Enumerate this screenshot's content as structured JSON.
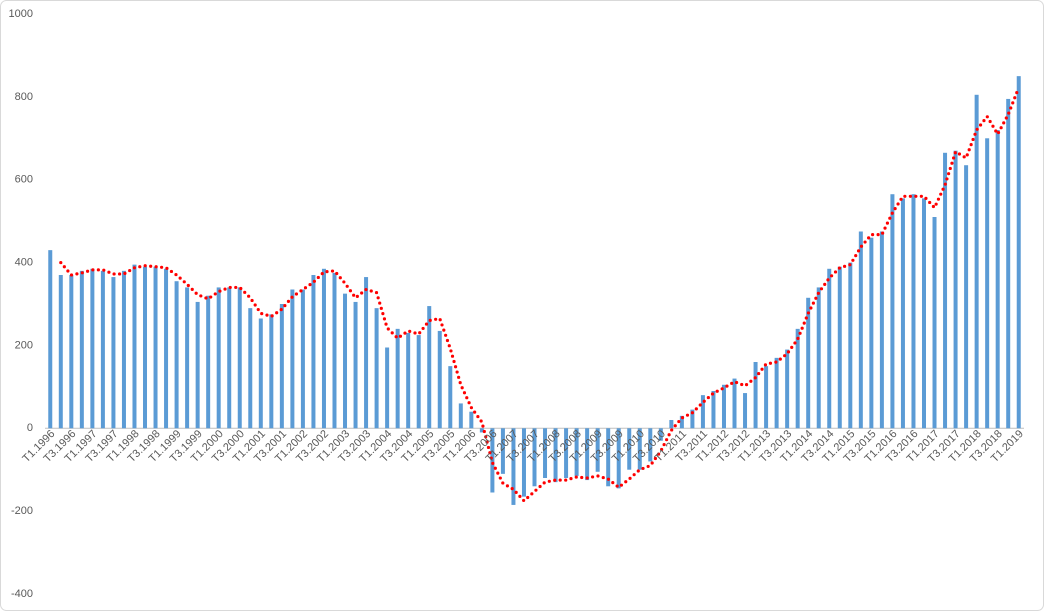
{
  "chart_data": {
    "type": "bar",
    "categories": [
      "T1.1996",
      null,
      "T3.1996",
      null,
      "T1.1997",
      null,
      "T3.1997",
      null,
      "T1.1998",
      null,
      "T3.1998",
      null,
      "T1.1999",
      null,
      "T3.1999",
      null,
      "T1.2000",
      null,
      "T3.2000",
      null,
      "T1.2001",
      null,
      "T3.2001",
      null,
      "T1.2002",
      null,
      "T3.2002",
      null,
      "T1.2003",
      null,
      "T3.2003",
      null,
      "T1.2004",
      null,
      "T3.2004",
      null,
      "T1.2005",
      null,
      "T3.2005",
      null,
      "T1.2006",
      null,
      "T3.2006",
      null,
      "T1.2007",
      null,
      "T3.2007",
      null,
      "T1.2008",
      null,
      "T3.2008",
      null,
      "T1.2009",
      null,
      "T3.2009",
      null,
      "T1.2010",
      null,
      "T3.2010",
      null,
      "T1.2011",
      null,
      "T3.2011",
      null,
      "T1.2012",
      null,
      "T3.2012",
      null,
      "T1.2013",
      null,
      "T3.2013",
      null,
      "T1.2014",
      null,
      "T3.2014",
      null,
      "T1.2015",
      null,
      "T3.2015",
      null,
      "T1.2016",
      null,
      "T3.2016",
      null,
      "T1.2017",
      null,
      "T3.2017",
      null,
      "T1.2018",
      null,
      "T3.2018",
      null,
      "T1.2019"
    ],
    "series": [
      {
        "type": "bar",
        "color": "#5b9bd5",
        "values": [
          430,
          370,
          370,
          380,
          385,
          380,
          365,
          380,
          395,
          390,
          390,
          385,
          355,
          340,
          305,
          320,
          340,
          340,
          340,
          290,
          265,
          275,
          300,
          335,
          335,
          370,
          385,
          375,
          325,
          305,
          365,
          290,
          195,
          240,
          230,
          225,
          295,
          235,
          150,
          60,
          40,
          -10,
          -155,
          -110,
          -185,
          -165,
          -140,
          -120,
          -130,
          -120,
          -115,
          -125,
          -105,
          -140,
          -145,
          -100,
          -100,
          -80,
          -30,
          20,
          30,
          45,
          80,
          90,
          105,
          120,
          85,
          160,
          150,
          170,
          190,
          240,
          315,
          340,
          385,
          390,
          400,
          475,
          460,
          475,
          565,
          555,
          565,
          555,
          510,
          665,
          670,
          635,
          805,
          700,
          720,
          795,
          850
        ]
      },
      {
        "type": "line",
        "color": "#ff0000",
        "values": [
          null,
          400,
          370,
          375,
          382.5,
          382.5,
          372.5,
          372.5,
          387.5,
          392.5,
          390,
          387.5,
          370,
          347.5,
          322.5,
          312.5,
          330,
          340,
          340,
          315,
          277.5,
          270,
          287.5,
          317.5,
          335,
          352.5,
          377.5,
          380,
          350,
          315,
          335,
          327.5,
          242.5,
          217.5,
          235,
          227.5,
          260,
          265,
          192.5,
          105,
          50,
          15,
          -82.5,
          -132.5,
          -147.5,
          -175,
          -152.5,
          -130,
          -125,
          -125,
          -117.5,
          -120,
          -115,
          -122.5,
          -142.5,
          -122.5,
          -100,
          -90,
          -55,
          -5,
          25,
          37.5,
          62.5,
          85,
          97.5,
          112.5,
          102.5,
          122.5,
          155,
          160,
          180,
          215,
          277.5,
          327.5,
          362.5,
          387.5,
          395,
          437.5,
          467.5,
          467.5,
          520,
          560,
          560,
          560,
          532.5,
          587.5,
          667.5,
          652.5,
          720,
          752.5,
          710,
          757.5,
          822.5
        ]
      }
    ],
    "ylim": [
      -400,
      1000
    ],
    "yticks": [
      -400,
      -200,
      0,
      200,
      400,
      600,
      800,
      1000
    ],
    "grid": false
  }
}
